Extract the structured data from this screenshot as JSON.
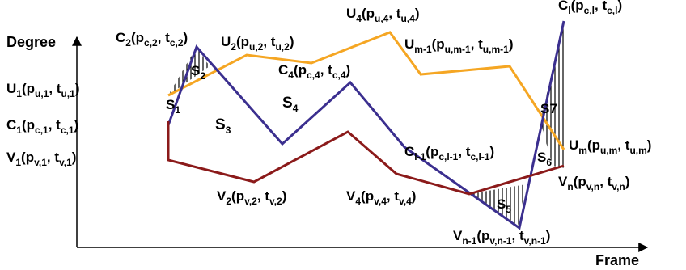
{
  "axes": {
    "y_title": "Degree",
    "x_title": "Frame"
  },
  "colors": {
    "upper_curve": "#F5A623",
    "middle_curve": "#3B2F8F",
    "lower_curve": "#8B1A1A",
    "axis": "#000000"
  },
  "points": {
    "C1": {
      "main": "C",
      "sub1": "1",
      "mid": "(p",
      "sub2": "c,1",
      "sep": ", t",
      "sub3": "c,1",
      "end": ")"
    },
    "C2": {
      "main": "C",
      "sub1": "2",
      "mid": "(p",
      "sub2": "c,2",
      "sep": ", t",
      "sub3": "c,2",
      "end": ")"
    },
    "C4": {
      "main": "C",
      "sub1": "4",
      "mid": "(p",
      "sub2": "c,4",
      "sep": ", t",
      "sub3": "c,4",
      "end": ")"
    },
    "Cl1": {
      "main": "C",
      "sub1": "l-1",
      "mid": "(p",
      "sub2": "c,l-1",
      "sep": ", t",
      "sub3": "c,l-1",
      "end": ")"
    },
    "Cl": {
      "main": "C",
      "sub1": "l",
      "mid": "(p",
      "sub2": "c,l",
      "sep": ", t",
      "sub3": "c,l",
      "end": ")"
    },
    "U1": {
      "main": "U",
      "sub1": "1",
      "mid": "(p",
      "sub2": "u,1",
      "sep": ", t",
      "sub3": "u,1",
      "end": ")"
    },
    "U2": {
      "main": "U",
      "sub1": "2",
      "mid": "(p",
      "sub2": "u,2",
      "sep": ", t",
      "sub3": "u,2",
      "end": ")"
    },
    "U4": {
      "main": "U",
      "sub1": "4",
      "mid": "(p",
      "sub2": "u,4",
      "sep": ", t",
      "sub3": "u,4",
      "end": ")"
    },
    "Um1": {
      "main": "U",
      "sub1": "m-1",
      "mid": "(p",
      "sub2": "u,m-1",
      "sep": ", t",
      "sub3": "u,m-1",
      "end": ")"
    },
    "Um": {
      "main": "U",
      "sub1": "m",
      "mid": "(p",
      "sub2": "u,m",
      "sep": ", t",
      "sub3": "u,m",
      "end": ")"
    },
    "V1": {
      "main": "V",
      "sub1": "1",
      "mid": "(p",
      "sub2": "v,1",
      "sep": ", t",
      "sub3": "v,1",
      "end": ")"
    },
    "V2": {
      "main": "V",
      "sub1": "2",
      "mid": "(p",
      "sub2": "v,2",
      "sep": ", t",
      "sub3": "v,2",
      "end": ")"
    },
    "V4": {
      "main": "V",
      "sub1": "4",
      "mid": "(p",
      "sub2": "v,4",
      "sep": ", t",
      "sub3": "v,4",
      "end": ")"
    },
    "Vn1": {
      "main": "V",
      "sub1": "n-1",
      "mid": "(p",
      "sub2": "v,n-1",
      "sep": ", t",
      "sub3": "v,n-1",
      "end": ")"
    },
    "Vn": {
      "main": "V",
      "sub1": "n",
      "mid": "(p",
      "sub2": "v,n",
      "sep": ", t",
      "sub3": "v,n",
      "end": ")"
    }
  },
  "regions": {
    "S1": {
      "main": "S",
      "sub": "1"
    },
    "S2": {
      "main": "S",
      "sub": "2"
    },
    "S3": {
      "main": "S",
      "sub": "3"
    },
    "S4": {
      "main": "S",
      "sub": "4"
    },
    "S5": {
      "main": "S",
      "sub": "5"
    },
    "S6": {
      "main": "S",
      "sub": "6"
    },
    "S7": {
      "main": "S7",
      "sub": ""
    }
  }
}
